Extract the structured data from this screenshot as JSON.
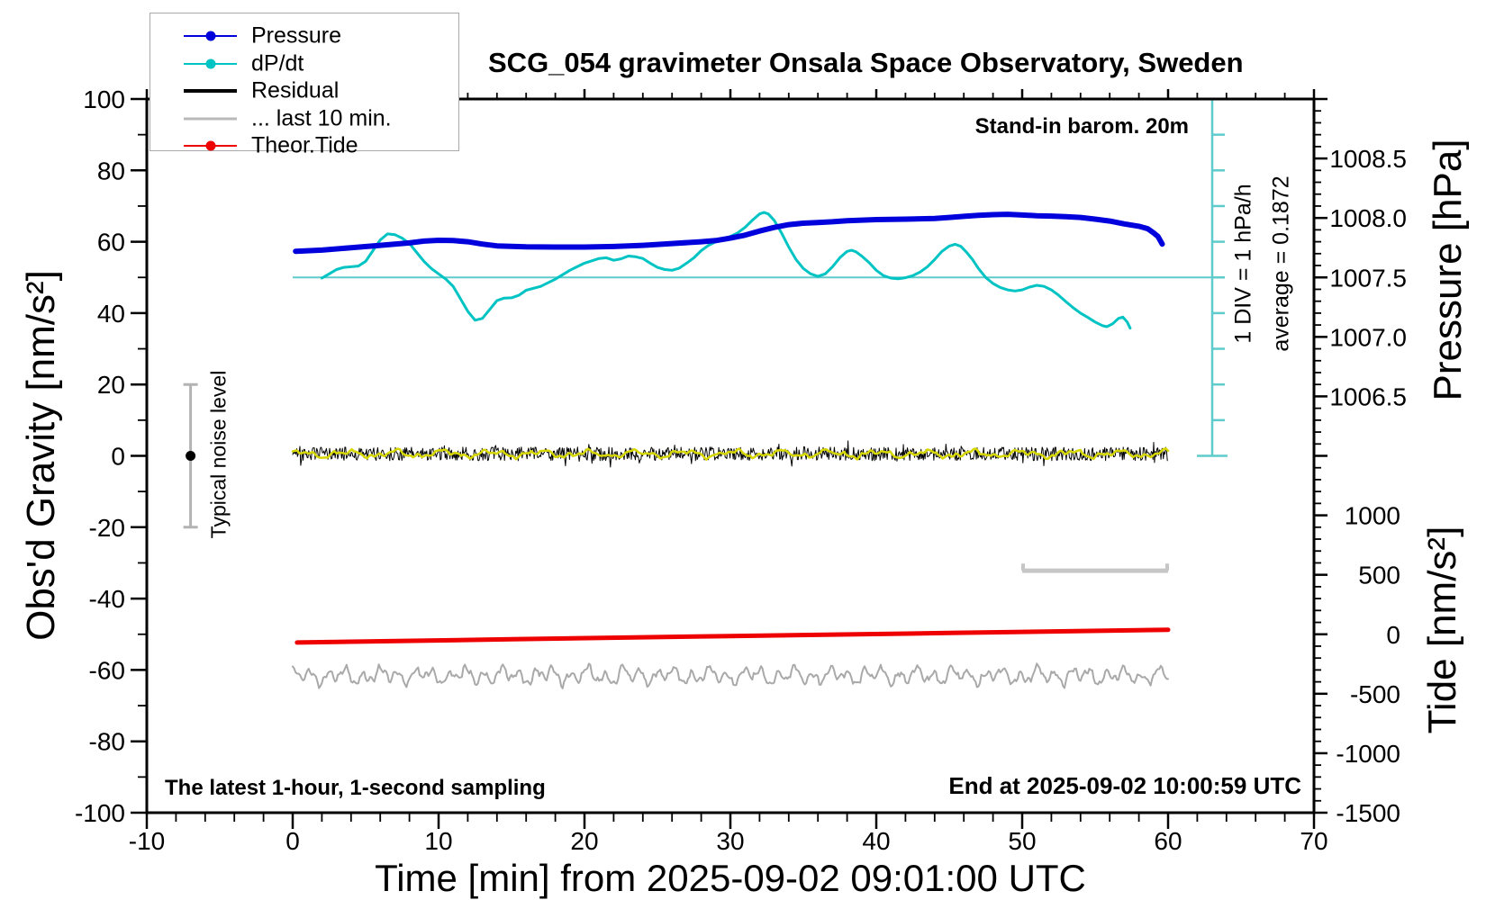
{
  "figure": {
    "title": "SCG_054 gravimeter Onsala Space Observatory, Sweden",
    "xlabel": "Time [min] from 2025-09-02 09:01:00 UTC",
    "ylabel_left": "Obs'd Gravity [nm/s²]",
    "ylabel_pressure": "Pressure [hPa]",
    "ylabel_tide": "Tide [nm/s²]"
  },
  "annotations": {
    "standin": "Stand-in barom. 20m",
    "div_scale": "1 DIV = 1 hPa/h",
    "average": "average = 0.1872",
    "typical_noise": "Typical noise level",
    "sampling": "The latest 1-hour, 1-second sampling",
    "end_at": "End at 2025-09-02 10:00:59 UTC"
  },
  "legend": {
    "items": [
      {
        "label": "Pressure",
        "color": "#0000dd",
        "dot": true,
        "weight": 2.5
      },
      {
        "label": "dP/dt",
        "color": "#00c3c3",
        "dot": true,
        "weight": 2.5
      },
      {
        "label": "Residual",
        "color": "#000000",
        "dot": false,
        "weight": 4
      },
      {
        "label": "... last 10 min.",
        "color": "#b9b9b9",
        "dot": false,
        "weight": 3.5
      },
      {
        "label": "Theor.Tide",
        "color": "#ee0000",
        "dot": true,
        "weight": 2.5
      }
    ]
  },
  "chart_data": {
    "type": "line",
    "title": "SCG_054 gravimeter Onsala Space Observatory, Sweden",
    "xlabel": "Time [min] from 2025-09-02 09:01:00 UTC",
    "grid": false,
    "x_axis": {
      "min": -10,
      "max": 70,
      "major_step": 10,
      "minor_step": 2,
      "labels": [
        "-10",
        "0",
        "10",
        "20",
        "30",
        "40",
        "50",
        "60",
        "70"
      ],
      "label_values": [
        -10,
        0,
        10,
        20,
        30,
        40,
        50,
        60,
        70
      ]
    },
    "gravity_axis": {
      "label": "Obs'd Gravity [nm/s²]",
      "min": -100,
      "max": 100,
      "major_step": 20,
      "minor_step": 10,
      "labels": [
        "100",
        "80",
        "60",
        "40",
        "20",
        "0",
        "-20",
        "-40",
        "-60",
        "-80",
        "-100"
      ],
      "label_values": [
        100,
        80,
        60,
        40,
        20,
        0,
        -20,
        -40,
        -60,
        -80,
        -100
      ]
    },
    "pressure_axis": {
      "label": "Pressure [hPa]",
      "labels": [
        "1008.5",
        "1008.0",
        "1007.5",
        "1007.0",
        "1006.5"
      ],
      "label_values": [
        1008.5,
        1008.0,
        1007.5,
        1007.0,
        1006.5
      ],
      "gravity_equiv_offset": {
        "hpa": 1007.5,
        "gravity": 50
      },
      "gravity_per_hpa": 33.333
    },
    "tide_axis": {
      "label": "Tide [nm/s²]",
      "labels": [
        "1000",
        "500",
        "0",
        "-500",
        "-1000",
        "-1500"
      ],
      "label_values": [
        1000,
        500,
        0,
        -500,
        -1000,
        -1500
      ],
      "gravity_equiv_offset": {
        "tide": 0,
        "gravity": -50
      },
      "gravity_per_tide_unit": 0.033333
    },
    "dpdt_scale": {
      "note": "1 DIV = 1 hPa/h",
      "average_hpa_per_h": 0.1872,
      "gravity_per_hpa_h": 10,
      "zero_at_gravity": 50,
      "n_divs": 10
    },
    "series": {
      "pressure": {
        "name": "Pressure",
        "unit": "hPa",
        "color": "#0000dd",
        "width": 6,
        "points": [
          [
            0.2,
            1007.72
          ],
          [
            2,
            1007.73
          ],
          [
            4,
            1007.75
          ],
          [
            6,
            1007.77
          ],
          [
            7,
            1007.78
          ],
          [
            8,
            1007.79
          ],
          [
            9,
            1007.805
          ],
          [
            10,
            1007.812
          ],
          [
            11,
            1007.81
          ],
          [
            12,
            1007.8
          ],
          [
            13,
            1007.78
          ],
          [
            14,
            1007.765
          ],
          [
            16,
            1007.757
          ],
          [
            18,
            1007.755
          ],
          [
            20,
            1007.755
          ],
          [
            22,
            1007.76
          ],
          [
            24,
            1007.77
          ],
          [
            26,
            1007.785
          ],
          [
            28,
            1007.8
          ],
          [
            29,
            1007.81
          ],
          [
            30,
            1007.83
          ],
          [
            31,
            1007.855
          ],
          [
            32,
            1007.89
          ],
          [
            33,
            1007.92
          ],
          [
            34,
            1007.944
          ],
          [
            35,
            1007.956
          ],
          [
            36,
            1007.962
          ],
          [
            37,
            1007.968
          ],
          [
            38,
            1007.977
          ],
          [
            40,
            1007.986
          ],
          [
            42,
            1007.99
          ],
          [
            44,
            1007.995
          ],
          [
            45,
            1008.004
          ],
          [
            46,
            1008.013
          ],
          [
            47,
            1008.022
          ],
          [
            48,
            1008.028
          ],
          [
            49,
            1008.031
          ],
          [
            50,
            1008.025
          ],
          [
            51,
            1008.019
          ],
          [
            52,
            1008.016
          ],
          [
            53,
            1008.01
          ],
          [
            54,
            1008.004
          ],
          [
            55,
            1007.99
          ],
          [
            56,
            1007.974
          ],
          [
            57,
            1007.95
          ],
          [
            58,
            1007.93
          ],
          [
            58.6,
            1007.91
          ],
          [
            59,
            1007.875
          ],
          [
            59.3,
            1007.845
          ],
          [
            59.6,
            1007.78
          ]
        ]
      },
      "dpdt": {
        "name": "dP/dt",
        "unit": "hPa/h",
        "color": "#00c3c3",
        "width": 3,
        "points": [
          [
            2,
            -0.02
          ],
          [
            2.5,
            0.1
          ],
          [
            3,
            0.22
          ],
          [
            3.5,
            0.28
          ],
          [
            4,
            0.3
          ],
          [
            4.5,
            0.32
          ],
          [
            5,
            0.45
          ],
          [
            5.5,
            0.75
          ],
          [
            6,
            1.05
          ],
          [
            6.5,
            1.22
          ],
          [
            7,
            1.2
          ],
          [
            7.5,
            1.1
          ],
          [
            8,
            0.95
          ],
          [
            8.5,
            0.7
          ],
          [
            9,
            0.45
          ],
          [
            9.5,
            0.25
          ],
          [
            10,
            0.1
          ],
          [
            10.5,
            -0.05
          ],
          [
            11,
            -0.25
          ],
          [
            11.5,
            -0.6
          ],
          [
            12,
            -0.95
          ],
          [
            12.5,
            -1.2
          ],
          [
            13,
            -1.15
          ],
          [
            13.5,
            -0.9
          ],
          [
            14,
            -0.65
          ],
          [
            14.5,
            -0.58
          ],
          [
            15,
            -0.57
          ],
          [
            15.5,
            -0.5
          ],
          [
            16,
            -0.36
          ],
          [
            17,
            -0.25
          ],
          [
            18,
            -0.05
          ],
          [
            19,
            0.2
          ],
          [
            20,
            0.4
          ],
          [
            21,
            0.53
          ],
          [
            21.5,
            0.55
          ],
          [
            22,
            0.48
          ],
          [
            22.5,
            0.52
          ],
          [
            23,
            0.6
          ],
          [
            23.5,
            0.58
          ],
          [
            24,
            0.53
          ],
          [
            24.5,
            0.4
          ],
          [
            25,
            0.28
          ],
          [
            25.5,
            0.22
          ],
          [
            26,
            0.2
          ],
          [
            26.5,
            0.26
          ],
          [
            27,
            0.4
          ],
          [
            27.5,
            0.55
          ],
          [
            28,
            0.75
          ],
          [
            28.5,
            0.9
          ],
          [
            29,
            1.0
          ],
          [
            29.5,
            1.08
          ],
          [
            30,
            1.15
          ],
          [
            30.5,
            1.25
          ],
          [
            31,
            1.4
          ],
          [
            31.5,
            1.6
          ],
          [
            32,
            1.78
          ],
          [
            32.3,
            1.82
          ],
          [
            32.6,
            1.78
          ],
          [
            33,
            1.6
          ],
          [
            33.5,
            1.25
          ],
          [
            34,
            0.85
          ],
          [
            34.5,
            0.5
          ],
          [
            35,
            0.25
          ],
          [
            35.5,
            0.1
          ],
          [
            36,
            0.03
          ],
          [
            36.5,
            0.1
          ],
          [
            37,
            0.3
          ],
          [
            37.5,
            0.55
          ],
          [
            38,
            0.73
          ],
          [
            38.3,
            0.76
          ],
          [
            38.6,
            0.72
          ],
          [
            39,
            0.6
          ],
          [
            39.5,
            0.42
          ],
          [
            40,
            0.2
          ],
          [
            40.5,
            0.05
          ],
          [
            41,
            -0.02
          ],
          [
            41.5,
            -0.04
          ],
          [
            42,
            -0.01
          ],
          [
            42.5,
            0.05
          ],
          [
            43,
            0.15
          ],
          [
            43.5,
            0.3
          ],
          [
            44,
            0.5
          ],
          [
            44.5,
            0.73
          ],
          [
            45,
            0.88
          ],
          [
            45.4,
            0.93
          ],
          [
            45.8,
            0.87
          ],
          [
            46.2,
            0.7
          ],
          [
            46.6,
            0.5
          ],
          [
            47,
            0.25
          ],
          [
            47.5,
            0.0
          ],
          [
            48,
            -0.17
          ],
          [
            48.5,
            -0.28
          ],
          [
            49,
            -0.35
          ],
          [
            49.5,
            -0.38
          ],
          [
            50,
            -0.35
          ],
          [
            50.5,
            -0.27
          ],
          [
            51,
            -0.22
          ],
          [
            51.5,
            -0.25
          ],
          [
            52,
            -0.35
          ],
          [
            52.5,
            -0.5
          ],
          [
            53,
            -0.68
          ],
          [
            53.5,
            -0.85
          ],
          [
            54,
            -1.0
          ],
          [
            54.5,
            -1.12
          ],
          [
            55,
            -1.25
          ],
          [
            55.5,
            -1.35
          ],
          [
            55.8,
            -1.38
          ],
          [
            56.2,
            -1.3
          ],
          [
            56.6,
            -1.15
          ],
          [
            56.9,
            -1.11
          ],
          [
            57.2,
            -1.25
          ],
          [
            57.4,
            -1.42
          ]
        ],
        "reference_line": {
          "value": 0,
          "x0": 0,
          "x1_px_at_scalebar": true,
          "color": "#5fcbcb"
        }
      },
      "residual": {
        "name": "Residual",
        "unit": "nm/s²",
        "color": "#000000",
        "width": 1,
        "noise": {
          "t0": 0,
          "t1": 60,
          "step": 0.055,
          "center": 0.55,
          "base_amp": 1.9,
          "spike_prob": 0.07,
          "spike_extra": 2.6,
          "seed": 42
        }
      },
      "residual_smooth": {
        "name": "Residual (smoothed)",
        "color": "#d6d600",
        "width": 2.5,
        "wave": {
          "t0": 0,
          "t1": 60,
          "step": 0.15,
          "center": 0.55,
          "seed": 7,
          "jitter": 0.5,
          "components": [
            [
              0.75,
              1.9,
              0.8
            ],
            [
              0.45,
              4.3,
              2.1
            ],
            [
              0.28,
              9.7,
              0.0
            ]
          ]
        }
      },
      "last10min": {
        "name": "... last 10 min.",
        "color": "#a9a9a9",
        "width": 2,
        "wave": {
          "t0": 0,
          "t1": 60,
          "step": 0.1,
          "center": -61.6,
          "seed": 13,
          "jitter": 1.2,
          "components": [
            [
              1.55,
              5.3,
              1.1
            ],
            [
              1.0,
              2.23,
              0.5
            ],
            [
              0.7,
              11.7,
              2.0
            ]
          ]
        }
      },
      "tide": {
        "name": "Theor.Tide",
        "unit": "nm/s²",
        "color": "#ee0000",
        "width": 5,
        "points": [
          [
            0.3,
            -69
          ],
          [
            15,
            -42
          ],
          [
            30,
            -15
          ],
          [
            45,
            11
          ],
          [
            60,
            38
          ]
        ]
      }
    },
    "markers": {
      "scalebar_color": "#5fcbcb",
      "noise_bar": {
        "label": "Typical noise level",
        "t": -7,
        "gravity_center": 0,
        "gravity_half_span": 20,
        "color": "#b3b3b3",
        "dot_color": "#000000"
      },
      "span_bar": {
        "t0": 50,
        "t1": 60,
        "gravity": -32.2,
        "color": "#c6c6c6"
      }
    }
  }
}
